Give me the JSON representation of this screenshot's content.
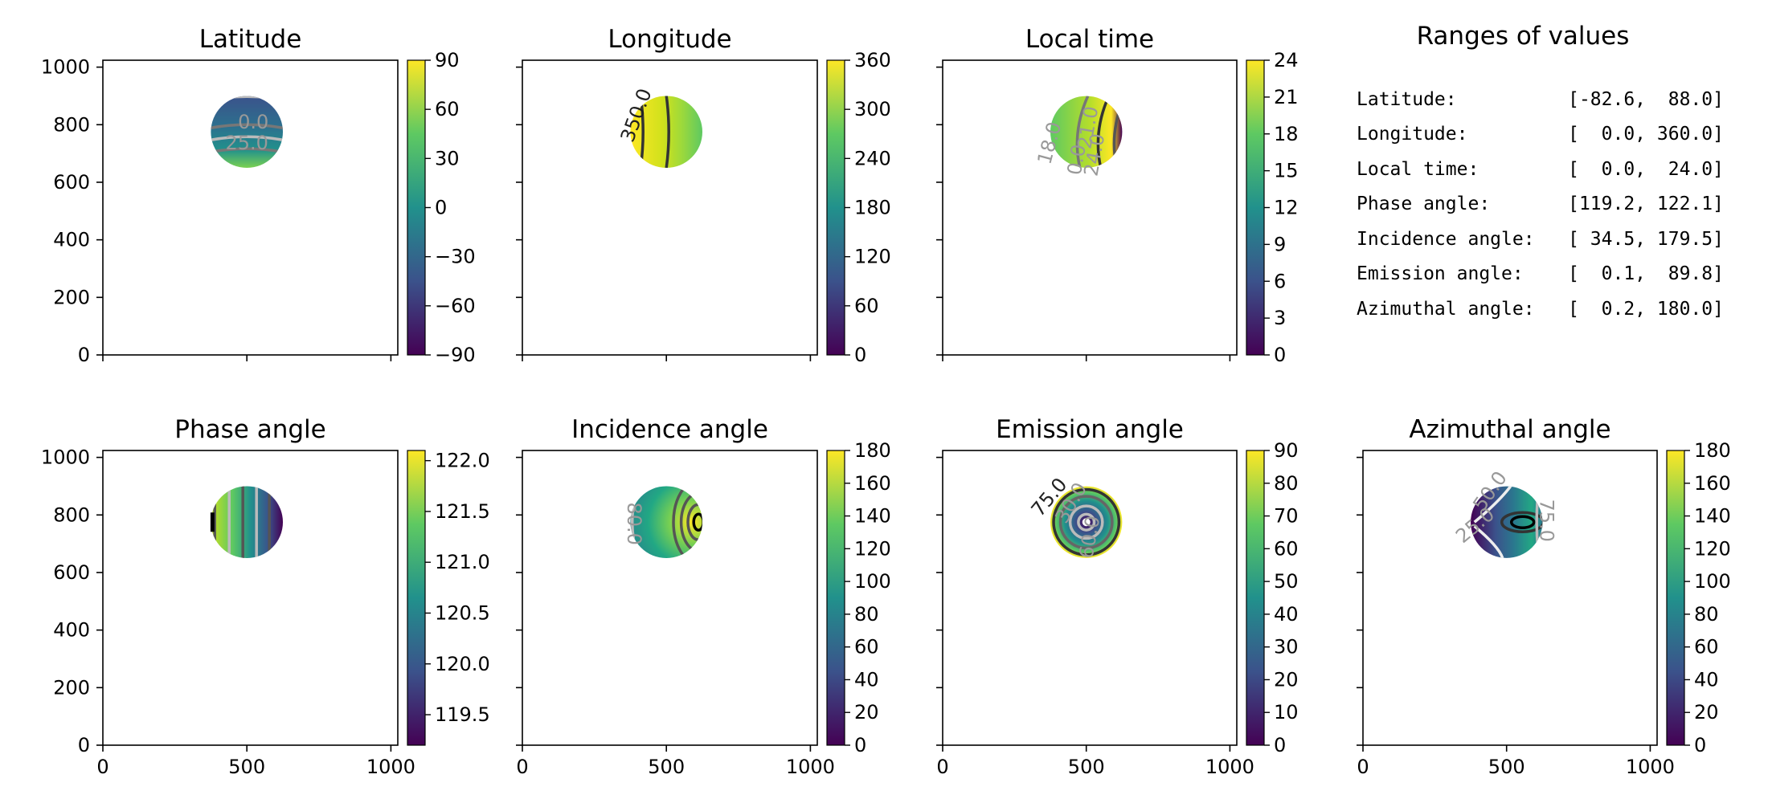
{
  "chart_data": [
    {
      "type": "heatmap",
      "title": "Latitude",
      "colorbar": {
        "range": [
          -90,
          90
        ],
        "ticks": [
          "90",
          "60",
          "30",
          "0",
          "−30",
          "−60",
          "−90"
        ]
      },
      "xlim": [
        0,
        1024
      ],
      "ylim": [
        0,
        1024
      ],
      "yticks": [
        "1000",
        "800",
        "600",
        "400",
        "200",
        "0"
      ],
      "xticks": [],
      "disk": {
        "center": [
          500,
          775
        ],
        "radius": 125
      },
      "contour_labels": [
        "0.0",
        "25.0"
      ]
    },
    {
      "type": "heatmap",
      "title": "Longitude",
      "colorbar": {
        "range": [
          0,
          360
        ],
        "ticks": [
          "360",
          "300",
          "240",
          "180",
          "120",
          "60",
          "0"
        ]
      },
      "xlim": [
        0,
        1024
      ],
      "ylim": [
        0,
        1024
      ],
      "yticks": [],
      "xticks": [],
      "disk": {
        "center": [
          500,
          775
        ],
        "radius": 125
      },
      "contour_labels": [
        "350.0"
      ]
    },
    {
      "type": "heatmap",
      "title": "Local time",
      "colorbar": {
        "range": [
          0,
          24
        ],
        "ticks": [
          "24",
          "21",
          "18",
          "15",
          "12",
          "9",
          "6",
          "3",
          "0"
        ]
      },
      "xlim": [
        0,
        1024
      ],
      "ylim": [
        0,
        1024
      ],
      "yticks": [],
      "xticks": [],
      "disk": {
        "center": [
          500,
          775
        ],
        "radius": 125
      },
      "contour_labels": [
        "18.0",
        "21.0",
        "24.0",
        "0.0"
      ]
    },
    {
      "type": "heatmap",
      "title": "Phase angle",
      "colorbar": {
        "range": [
          119.2,
          122.1
        ],
        "ticks": [
          "122.0",
          "121.5",
          "121.0",
          "120.5",
          "120.0",
          "119.5"
        ]
      },
      "xlim": [
        0,
        1024
      ],
      "ylim": [
        0,
        1024
      ],
      "yticks": [
        "1000",
        "800",
        "600",
        "400",
        "200",
        "0"
      ],
      "xticks": [
        "0",
        "500",
        "1000"
      ],
      "disk": {
        "center": [
          500,
          775
        ],
        "radius": 125
      },
      "contour_labels": []
    },
    {
      "type": "heatmap",
      "title": "Incidence angle",
      "colorbar": {
        "range": [
          0,
          180
        ],
        "ticks": [
          "180",
          "160",
          "140",
          "120",
          "100",
          "80",
          "60",
          "40",
          "20",
          "0"
        ]
      },
      "xlim": [
        0,
        1024
      ],
      "ylim": [
        0,
        1024
      ],
      "yticks": [],
      "xticks": [
        "0",
        "500",
        "1000"
      ],
      "disk": {
        "center": [
          500,
          775
        ],
        "radius": 125
      },
      "contour_labels": [
        "80.0"
      ]
    },
    {
      "type": "heatmap",
      "title": "Emission angle",
      "colorbar": {
        "range": [
          0,
          90
        ],
        "ticks": [
          "90",
          "80",
          "70",
          "60",
          "50",
          "40",
          "30",
          "20",
          "10",
          "0"
        ]
      },
      "xlim": [
        0,
        1024
      ],
      "ylim": [
        0,
        1024
      ],
      "yticks": [],
      "xticks": [
        "0",
        "500",
        "1000"
      ],
      "disk": {
        "center": [
          500,
          775
        ],
        "radius": 125
      },
      "contour_labels": [
        "75.0",
        "30.0",
        "60.0"
      ]
    },
    {
      "type": "heatmap",
      "title": "Azimuthal angle",
      "colorbar": {
        "range": [
          0,
          180
        ],
        "ticks": [
          "180",
          "160",
          "140",
          "120",
          "100",
          "80",
          "60",
          "40",
          "20",
          "0"
        ]
      },
      "xlim": [
        0,
        1024
      ],
      "ylim": [
        0,
        1024
      ],
      "yticks": [],
      "xticks": [
        "0",
        "500",
        "1000"
      ],
      "disk": {
        "center": [
          500,
          775
        ],
        "radius": 125
      },
      "contour_labels": [
        "75.0",
        "25.0",
        "50.0"
      ]
    }
  ],
  "ranges": {
    "title": "Ranges of values",
    "rows": [
      "Latitude:          [-82.6,  88.0]",
      "Longitude:         [  0.0, 360.0]",
      "Local time:        [  0.0,  24.0]",
      "Phase angle:       [119.2, 122.1]",
      "Incidence angle:   [ 34.5, 179.5]",
      "Emission angle:    [  0.1,  89.8]",
      "Azimuthal angle:   [  0.2, 180.0]"
    ]
  },
  "colors": {
    "cmap": [
      "#440154",
      "#3b528b",
      "#21918c",
      "#5ec962",
      "#fde725"
    ],
    "contour_dark": "#333333",
    "contour_light": "#bbbbbb"
  }
}
